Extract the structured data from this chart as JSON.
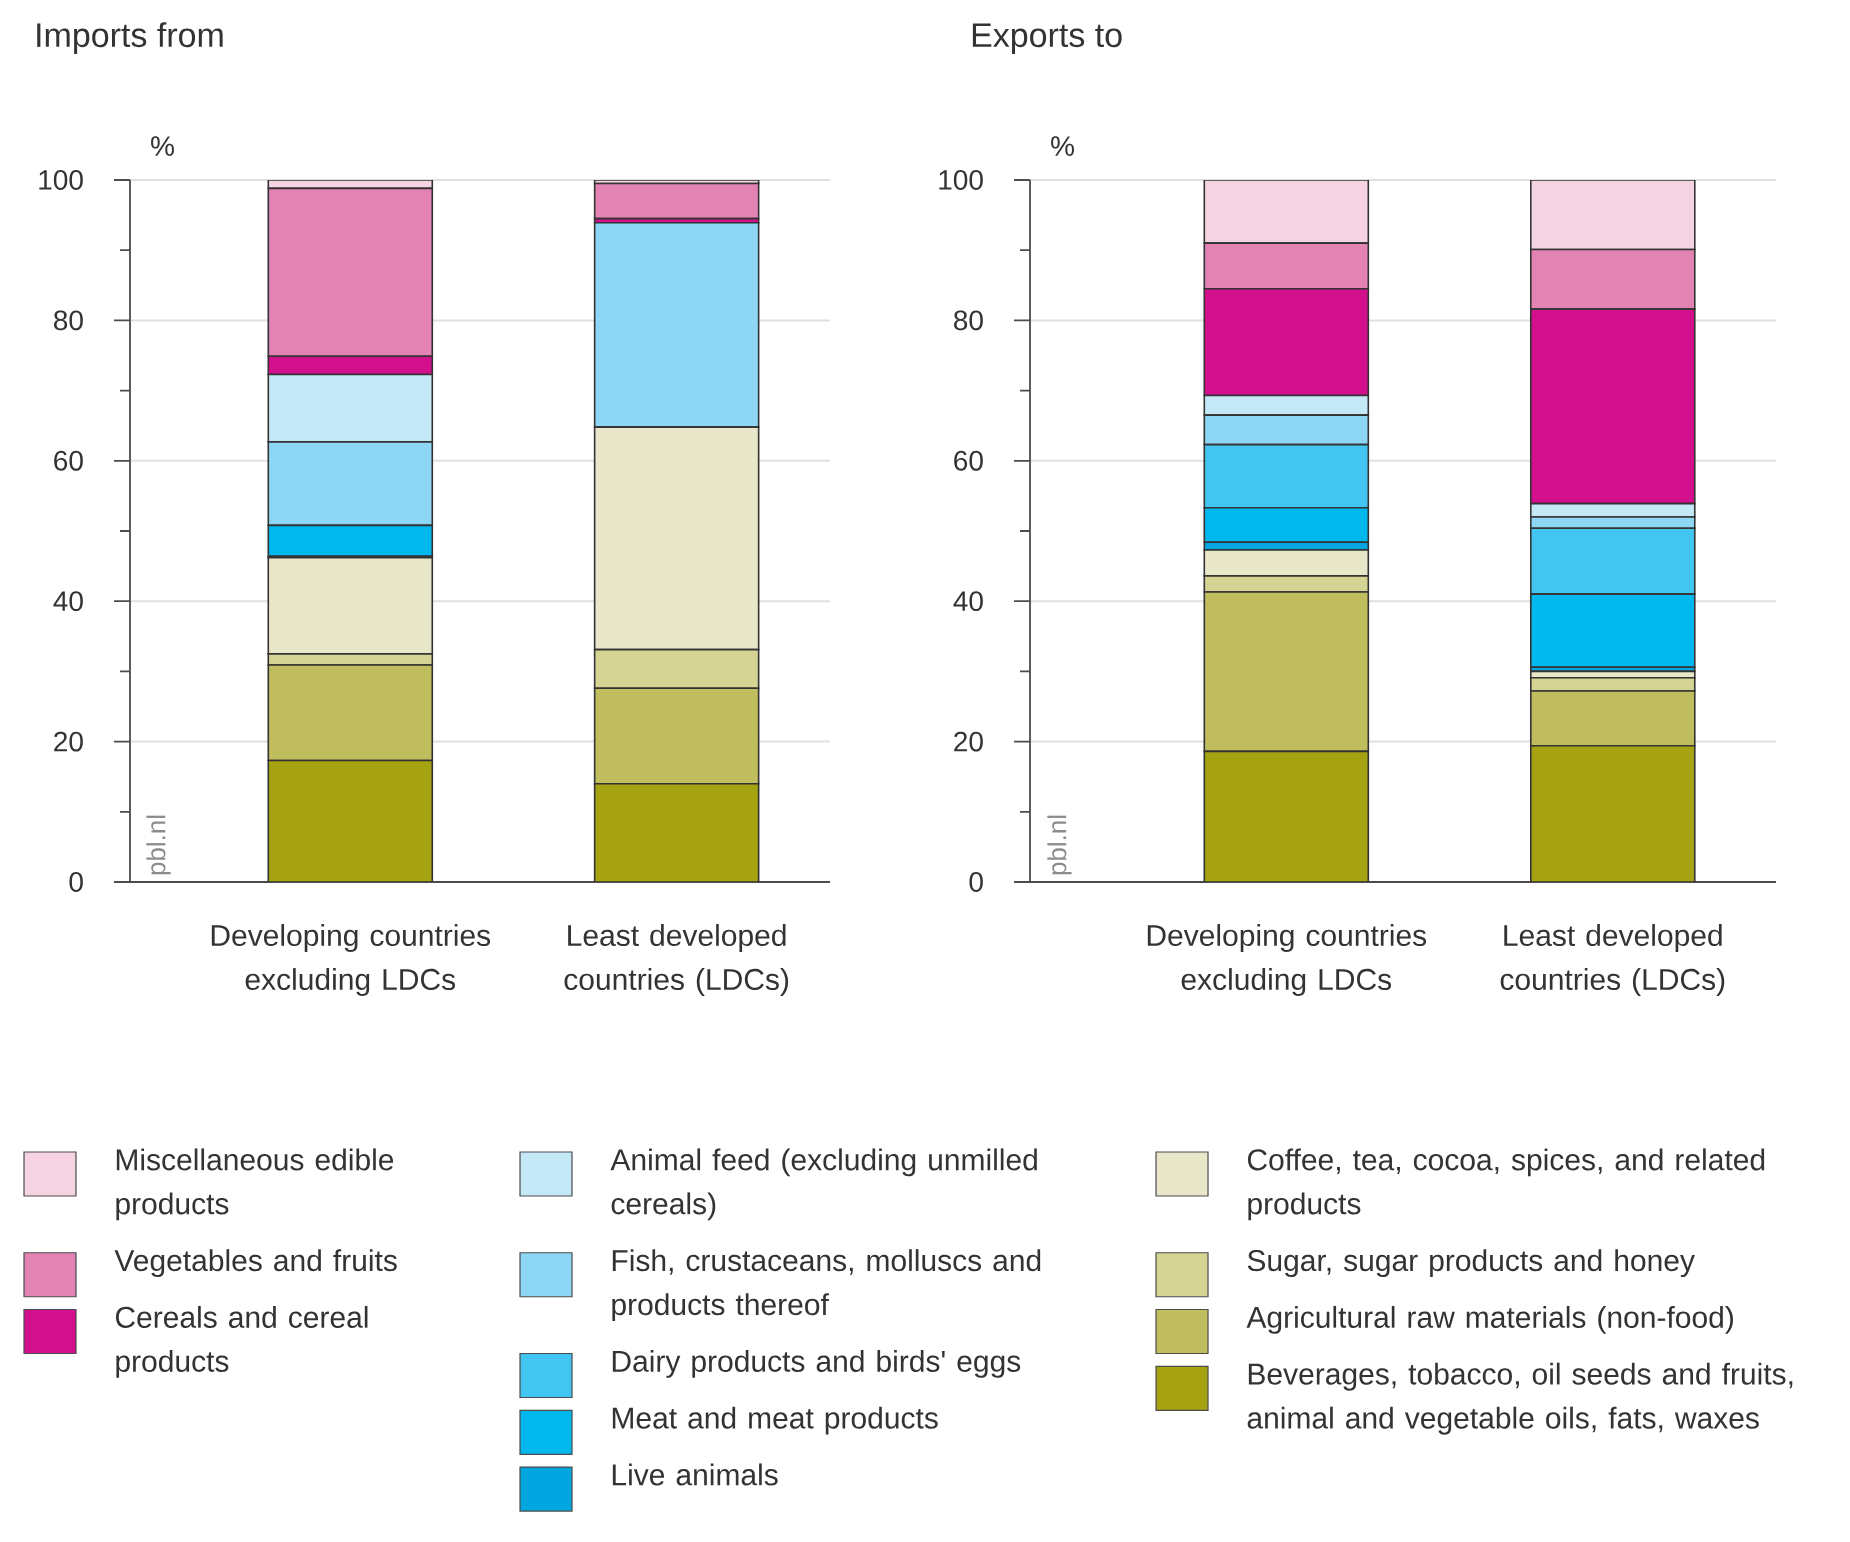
{
  "chart_data": [
    {
      "type": "bar",
      "title": "Imports from",
      "ylabel": "%",
      "stacked": true,
      "grid": "y",
      "legend": "bottom",
      "categories": [
        "Developing countries excluding LDCs",
        "Least developed countries (LDCs)"
      ],
      "ylim": [
        0,
        100
      ],
      "yticks": [
        0,
        {
          "value": 10,
          "label": null
        },
        20,
        {
          "value": 30,
          "label": null
        },
        40,
        {
          "value": 50,
          "label": null
        },
        60,
        {
          "value": 70,
          "label": null
        },
        80,
        {
          "value": 90,
          "label": null
        },
        100
      ],
      "annotations": [
        "pbl.nl"
      ],
      "series": [
        {
          "name": "Beverages, tobacco, oil seeds and fruits, animal and vegetable oils, fats, waxes",
          "color": "#a6a313",
          "values": [
            17.3,
            14.0
          ]
        },
        {
          "name": "Agricultural raw materials (non-food)",
          "color": "#bfbd5d",
          "values": [
            13.6,
            13.6
          ]
        },
        {
          "name": "Sugar, sugar products and honey",
          "color": "#d6d494",
          "values": [
            1.6,
            5.5
          ]
        },
        {
          "name": "Coffee, tea, cocoa, spices, and related products",
          "color": "#e8e7c9",
          "values": [
            13.7,
            31.7
          ]
        },
        {
          "name": "Live animals",
          "color": "#00a6e0",
          "values": [
            0.2,
            0
          ]
        },
        {
          "name": "Meat and meat products",
          "color": "#00b8ee",
          "values": [
            4.4,
            0
          ]
        },
        {
          "name": "Dairy products and birds' eggs",
          "color": "#42c5f0",
          "values": [
            0,
            0
          ]
        },
        {
          "name": "Fish, crustaceans, molluscs and products thereof",
          "color": "#8dd6f4",
          "values": [
            11.9,
            29.1
          ]
        },
        {
          "name": "Animal feed (excluding unmilled cereals)",
          "color": "#c5e8f7",
          "values": [
            9.6,
            0
          ]
        },
        {
          "name": "Cereals and cereal products",
          "color": "#d20f8c",
          "values": [
            2.6,
            0.6
          ]
        },
        {
          "name": "Vegetables and fruits",
          "color": "#e283b4",
          "values": [
            23.9,
            5.0
          ]
        },
        {
          "name": "Miscellaneous edible products",
          "color": "#f5d3e2",
          "values": [
            1.2,
            0.5
          ]
        }
      ]
    },
    {
      "type": "bar",
      "title": "Exports to",
      "ylabel": "%",
      "stacked": true,
      "grid": "y",
      "categories": [
        "Developing countries excluding LDCs",
        "Least developed countries (LDCs)"
      ],
      "ylim": [
        0,
        100
      ],
      "yticks": [
        0,
        {
          "value": 10,
          "label": null
        },
        20,
        {
          "value": 30,
          "label": null
        },
        40,
        {
          "value": 50,
          "label": null
        },
        60,
        {
          "value": 70,
          "label": null
        },
        80,
        {
          "value": 90,
          "label": null
        },
        100
      ],
      "annotations": [
        "pbl.nl"
      ],
      "series": [
        {
          "color": "#a6a313",
          "values": [
            18.6,
            19.4
          ]
        },
        {
          "color": "#bfbd5d",
          "values": [
            22.7,
            7.8
          ]
        },
        {
          "color": "#d6d494",
          "values": [
            2.3,
            1.9
          ]
        },
        {
          "color": "#e8e7c9",
          "values": [
            3.7,
            0.9
          ]
        },
        {
          "color": "#00a6e0",
          "values": [
            1.1,
            0.6
          ]
        },
        {
          "color": "#00b8ee",
          "values": [
            4.9,
            10.4
          ]
        },
        {
          "color": "#42c5f0",
          "values": [
            9.0,
            9.4
          ]
        },
        {
          "color": "#8dd6f4",
          "values": [
            4.2,
            1.6
          ]
        },
        {
          "color": "#c5e8f7",
          "values": [
            2.8,
            1.9
          ]
        },
        {
          "color": "#d20f8c",
          "values": [
            15.2,
            27.7
          ]
        },
        {
          "color": "#e283b4",
          "values": [
            6.5,
            8.5
          ]
        },
        {
          "color": "#f5d3e2",
          "values": [
            9.0,
            9.9
          ]
        }
      ]
    }
  ]
}
